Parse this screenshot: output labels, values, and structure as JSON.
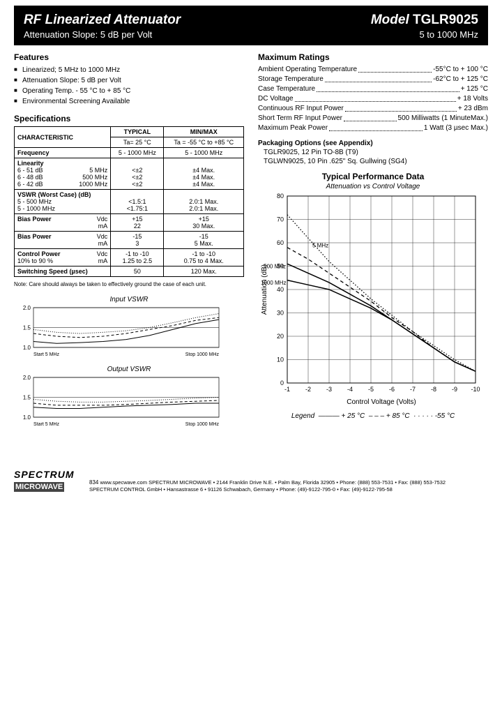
{
  "header": {
    "title": "RF Linearized Attenuator",
    "subtitle": "Attenuation Slope: 5 dB per Volt",
    "model_label": "Model ",
    "model_num": "TGLR9025",
    "freq": "5 to 1000 MHz"
  },
  "features": {
    "heading": "Features",
    "items": [
      "Linearized; 5 MHz to 1000 MHz",
      "Attenuation Slope: 5 dB per Volt",
      "Operating Temp. - 55 °C to + 85 °C",
      "Environmental Screening Available"
    ]
  },
  "spec": {
    "heading": "Specifications",
    "col_char": "CHARACTERISTIC",
    "col_typ": "TYPICAL",
    "col_typ_sub": "Ta= 25 °C",
    "col_mm": "MIN/MAX",
    "col_mm_sub": "Ta = -55 °C to +85 °C",
    "rows": {
      "freq": {
        "l": "Frequency",
        "t": "5 - 1000 MHz",
        "m": "5 - 1000 MHz"
      },
      "lin_h": "Linearity",
      "lin1": {
        "l": "6 - 51 dB",
        "l2": "5 MHz",
        "t": "<±2",
        "m": "±4 Max."
      },
      "lin2": {
        "l": "6 - 48 dB",
        "l2": "500 MHz",
        "t": "<±2",
        "m": "±4 Max."
      },
      "lin3": {
        "l": "6 - 42 dB",
        "l2": "1000 MHz",
        "t": "<±2",
        "m": "±4 Max."
      },
      "vswr_h": "VSWR (Worst Case) (dB)",
      "vswr1": {
        "l": "5 - 500 MHz",
        "t": "<1.5:1",
        "m": "2.0:1 Max."
      },
      "vswr2": {
        "l": "5 - 1000 MHz",
        "t": "<1.75:1",
        "m": "2.0:1 Max."
      },
      "bp1a": {
        "l": "Bias Power",
        "l2": "Vdc",
        "t": "+15",
        "m": "+15"
      },
      "bp1b": {
        "l": "",
        "l2": "mA",
        "t": "22",
        "m": "30 Max."
      },
      "bp2a": {
        "l": "Bias Power",
        "l2": "Vdc",
        "t": "-15",
        "m": "-15"
      },
      "bp2b": {
        "l": "",
        "l2": "mA",
        "t": "3",
        "m": "5 Max."
      },
      "cpa": {
        "l": "Control Power",
        "l2": "Vdc",
        "t": "-1 to -10",
        "m": "-1 to -10"
      },
      "cpb": {
        "l": "10% to 90 %",
        "l2": "mA",
        "t": "1.25 to 2.5",
        "m": "0.75 to 4 Max."
      },
      "ss": {
        "l": "Switching Speed (µsec)",
        "t": "50",
        "m": "120 Max."
      }
    },
    "note": "Note: Care should always be taken to effectively ground the case of each unit."
  },
  "vswr_charts": {
    "in_title": "Input VSWR",
    "out_title": "Output VSWR",
    "yticks": [
      "2.0",
      "1.5",
      "1.0"
    ],
    "xstart": "Start 5 MHz",
    "xstop": "Stop 1000 MHz",
    "grid_color": "#000",
    "bg": "#fff",
    "in_series": {
      "solid": [
        1.15,
        1.1,
        1.12,
        1.15,
        1.2,
        1.3,
        1.45,
        1.6,
        1.7
      ],
      "dash": [
        1.35,
        1.28,
        1.25,
        1.28,
        1.35,
        1.45,
        1.55,
        1.68,
        1.75
      ],
      "dot": [
        1.45,
        1.38,
        1.35,
        1.38,
        1.42,
        1.5,
        1.62,
        1.75,
        1.85
      ]
    },
    "out_series": {
      "solid": [
        1.25,
        1.22,
        1.22,
        1.25,
        1.28,
        1.3,
        1.32,
        1.35,
        1.35
      ],
      "dash": [
        1.35,
        1.3,
        1.3,
        1.3,
        1.32,
        1.35,
        1.38,
        1.4,
        1.42
      ],
      "dot": [
        1.45,
        1.4,
        1.38,
        1.38,
        1.4,
        1.42,
        1.45,
        1.48,
        1.5
      ]
    }
  },
  "ratings": {
    "heading": "Maximum Ratings",
    "items": [
      {
        "l": "Ambient Operating Temperature",
        "v": "-55°C to + 100 °C"
      },
      {
        "l": "Storage Temperature",
        "v": "-62°C to + 125 °C"
      },
      {
        "l": "Case Temperature",
        "v": "+ 125 °C"
      },
      {
        "l": "DC Voltage",
        "v": "+ 18 Volts"
      },
      {
        "l": "Continuous RF Input Power",
        "v": "+ 23 dBm"
      },
      {
        "l": "Short Term RF Input Power",
        "v": "500 Milliwatts (1 MinuteMax.)"
      },
      {
        "l": "Maximum Peak Power",
        "v": "1 Watt (3 µsec Max.)"
      }
    ]
  },
  "pkg": {
    "heading": "Packaging Options   (see Appendix)",
    "l1": "TGLR9025, 12 Pin TO-8B (T9)",
    "l2": "TGLWN9025, 10 Pin .625\" Sq. Gullwing (SG4)"
  },
  "main_chart": {
    "title": "Typical Performance Data",
    "subtitle": "Attenuation vs Control Voltage",
    "ylabel": "Attenuation (dB)",
    "xlabel": "Control Voltage (Volts)",
    "yticks": [
      0,
      10,
      20,
      30,
      40,
      50,
      60,
      70,
      80
    ],
    "xticks": [
      "-1",
      "-2",
      "-3",
      "-4",
      "-5",
      "-6",
      "-7",
      "-8",
      "-9",
      "-10"
    ],
    "ylim": [
      0,
      80
    ],
    "grid_color": "#000",
    "bg": "#fff",
    "annot1": "5 MHz",
    "annot2": "500 MHz",
    "annot3": "1000 MHz",
    "series": {
      "t25": [
        51,
        47,
        43,
        38,
        33,
        27,
        21,
        15,
        9,
        5
      ],
      "t25b": [
        44,
        42,
        40,
        36,
        32,
        27,
        21,
        15,
        9,
        5
      ],
      "t85": [
        58,
        53,
        47,
        41,
        35,
        28,
        22,
        15,
        9,
        5
      ],
      "tm55": [
        72,
        62,
        52,
        44,
        36,
        29,
        22,
        16,
        10,
        5
      ]
    }
  },
  "legend": {
    "label": "Legend",
    "a": "+ 25 °C",
    "b": "+ 85 °C",
    "c": "-55 °C"
  },
  "footer": {
    "logo_top": "SPECTRUM",
    "logo_bot": "MICROWAVE",
    "url": "www.specwave.com",
    "page": "834",
    "line1": "SPECTRUM MICROWAVE • 2144 Franklin Drive N.E. • Palm Bay, Florida 32905 • Phone: (888) 553-7531 • Fax: (888) 553-7532",
    "line2": "SPECTRUM CONTROL GmbH • Hansastrasse 6 • 91126 Schwabach, Germany • Phone: (49)-9122-795-0 • Fax: (49)-9122-795-58"
  }
}
